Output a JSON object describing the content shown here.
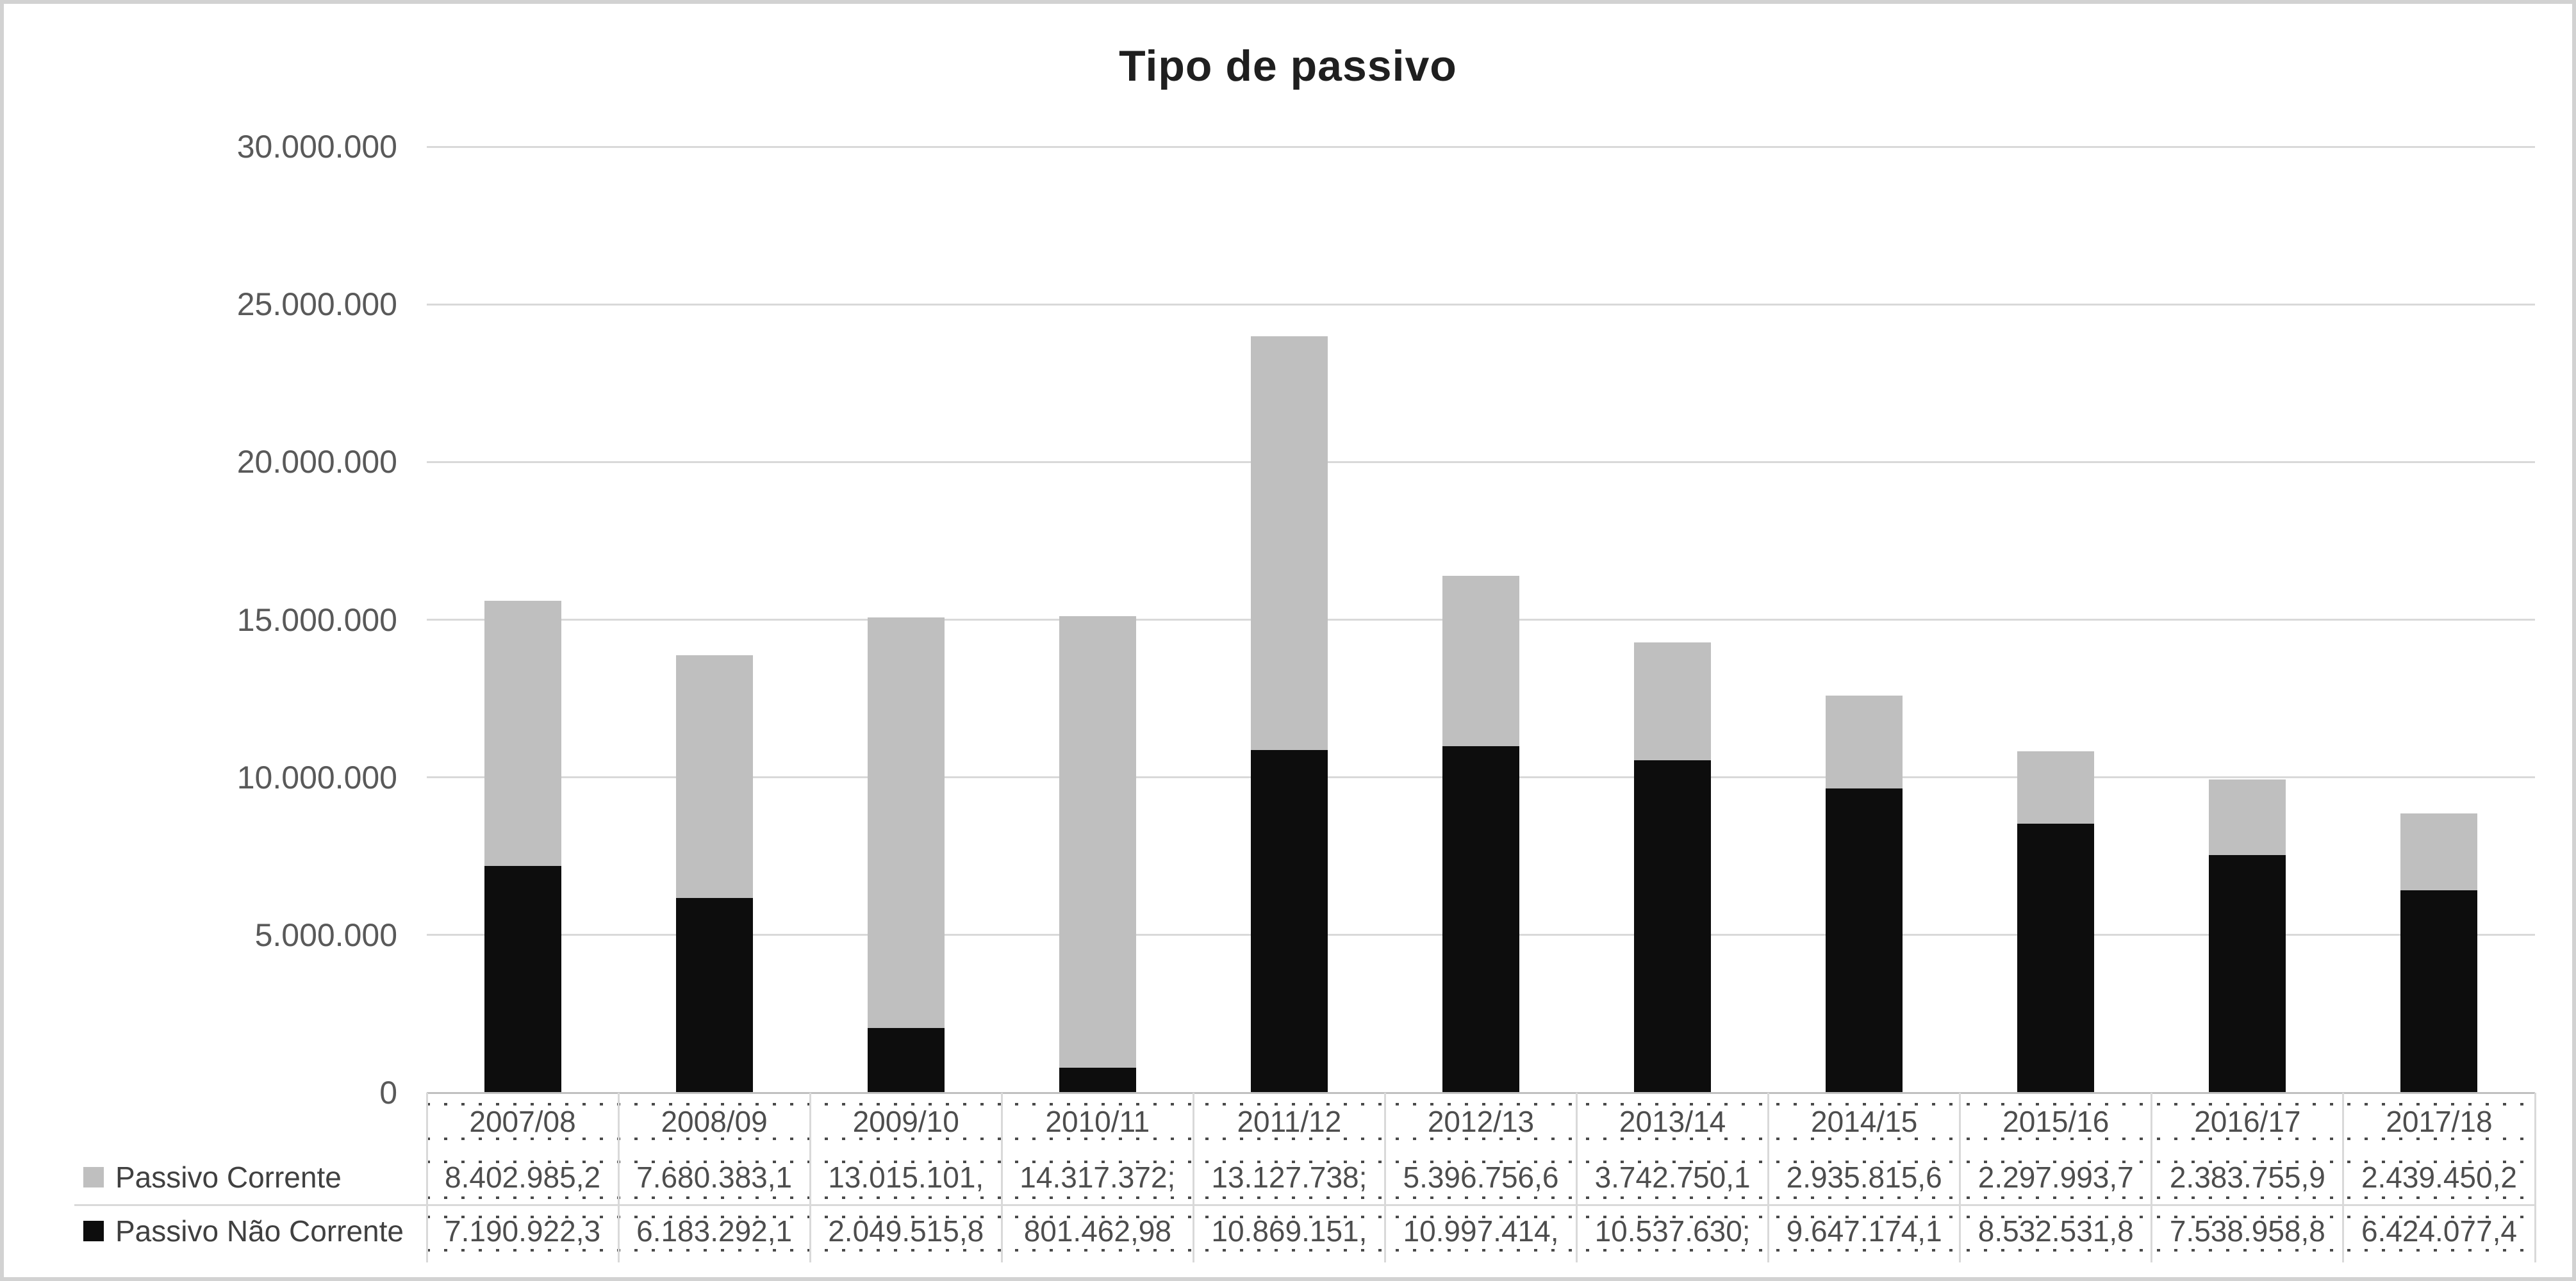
{
  "title": "Tipo de passivo",
  "chart_data": {
    "type": "bar",
    "stacked": true,
    "title": "Tipo de passivo",
    "categories": [
      "2007/08",
      "2008/09",
      "2009/10",
      "2010/11",
      "2011/12",
      "2012/13",
      "2013/14",
      "2014/15",
      "2015/16",
      "2016/17",
      "2017/18"
    ],
    "series": [
      {
        "name": "Passivo Corrente",
        "color": "#bfbfbf",
        "values": [
          8402985.2,
          7680383.1,
          13015101,
          14317372,
          13127738,
          5396756.6,
          3742750.1,
          2935815.6,
          2297993.7,
          2383755.9,
          2439450.2
        ],
        "display_values": [
          "8.402.985,2",
          "7.680.383,1",
          "13.015.101,",
          "14.317.372;",
          "13.127.738;",
          "5.396.756,6",
          "3.742.750,1",
          "2.935.815,6",
          "2.297.993,7",
          "2.383.755,9",
          "2.439.450,2"
        ]
      },
      {
        "name": "Passivo Não Corrente",
        "color": "#0d0d0d",
        "values": [
          7190922.3,
          6183292.1,
          2049515.8,
          801462.98,
          10869151,
          10997414,
          10537630,
          9647174.1,
          8532531.8,
          7538958.8,
          6424077.4
        ],
        "display_values": [
          "7.190.922,3",
          "6.183.292,1",
          "2.049.515,8",
          "801.462,98",
          "10.869.151,",
          "10.997.414,",
          "10.537.630;",
          "9.647.174,1",
          "8.532.531,8",
          "7.538.958,8",
          "6.424.077,4"
        ]
      }
    ],
    "stack_order_bottom_to_top": [
      "Passivo Não Corrente",
      "Passivo Corrente"
    ],
    "ylim": [
      0,
      30000000
    ],
    "ytick_interval": 5000000,
    "ytick_labels": [
      "0",
      "5.000.000",
      "10.000.000",
      "15.000.000",
      "20.000.000",
      "25.000.000",
      "30.000.000"
    ],
    "grid": true,
    "legend_position": "left-of-data-table",
    "data_table_shown": true
  },
  "colors": {
    "bar_gray": "#bfbfbf",
    "bar_black": "#0d0d0d",
    "gridline": "#d9d9d9",
    "axis_line": "#c0c0c0",
    "table_line": "#d9d9d9",
    "dotted_line": "#4a4a4a",
    "text": "#595959",
    "title_text": "#1f1f1f",
    "border": "#d2d2d2"
  }
}
